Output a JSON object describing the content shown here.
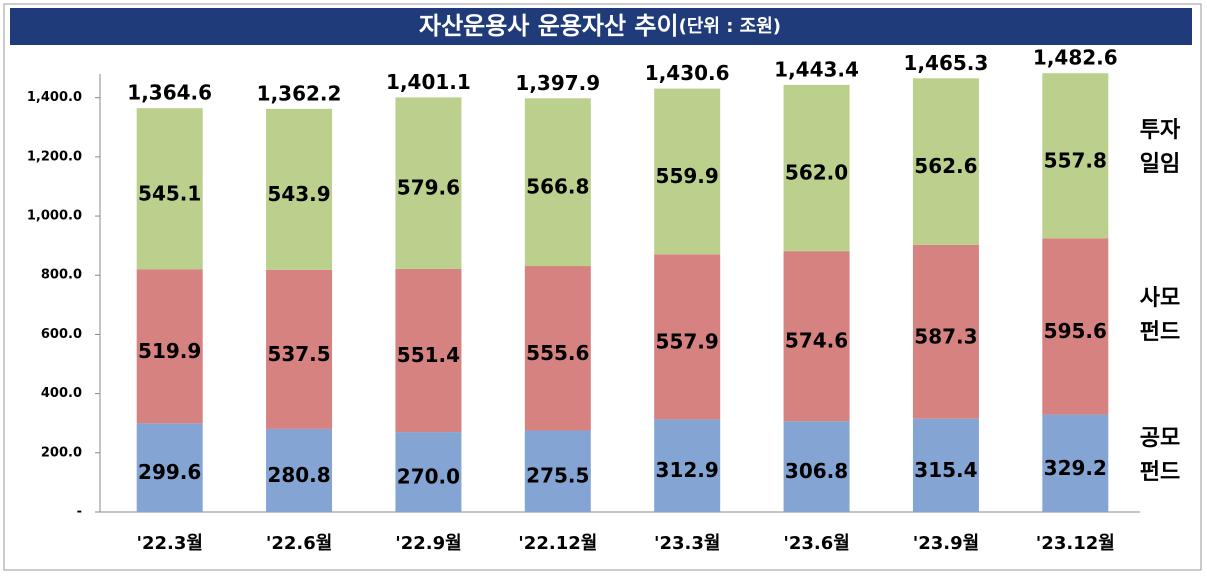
{
  "chart_data": {
    "type": "stacked-bar",
    "title": "자산운용사 운용자산 추이",
    "subtitle": "(단위 : 조원)",
    "categories": [
      "'22.3월",
      "'22.6월",
      "'22.9월",
      "'22.12월",
      "'23.3월",
      "'23.6월",
      "'23.9월",
      "'23.12월"
    ],
    "series": [
      {
        "name": "공모\n펀드",
        "color": "#84a5d3",
        "values": [
          299.6,
          280.8,
          270.0,
          275.5,
          312.9,
          306.8,
          315.4,
          329.2
        ],
        "value_labels": [
          "299.6",
          "280.8",
          "270.0",
          "275.5",
          "312.9",
          "306.8",
          "315.4",
          "329.2"
        ]
      },
      {
        "name": "사모\n펀드",
        "color": "#d68281",
        "values": [
          519.9,
          537.5,
          551.4,
          555.6,
          557.9,
          574.6,
          587.3,
          595.6
        ],
        "value_labels": [
          "519.9",
          "537.5",
          "551.4",
          "555.6",
          "557.9",
          "574.6",
          "587.3",
          "595.6"
        ]
      },
      {
        "name": "투자\n일임",
        "color": "#bcd08d",
        "values": [
          545.1,
          543.9,
          579.6,
          566.8,
          559.9,
          562.0,
          562.6,
          557.8
        ],
        "value_labels": [
          "545.1",
          "543.9",
          "579.6",
          "566.8",
          "559.9",
          "562.0",
          "562.6",
          "557.8"
        ]
      }
    ],
    "totals": [
      1364.6,
      1362.2,
      1401.1,
      1397.9,
      1430.6,
      1443.4,
      1465.3,
      1482.6
    ],
    "total_labels": [
      "1,364.6",
      "1,362.2",
      "1,401.1",
      "1,397.9",
      "1,430.6",
      "1,443.4",
      "1,465.3",
      "1,482.6"
    ],
    "ylim": [
      0,
      1480
    ],
    "yticks": [
      {
        "value": 0,
        "label": "-"
      },
      {
        "value": 200,
        "label": "200.0"
      },
      {
        "value": 400,
        "label": "400.0"
      },
      {
        "value": 600,
        "label": "600.0"
      },
      {
        "value": 800,
        "label": "800.0"
      },
      {
        "value": 1000,
        "label": "1,000.0"
      },
      {
        "value": 1200,
        "label": "1,200.0"
      },
      {
        "value": 1400,
        "label": "1,400.0"
      }
    ],
    "grid": false
  }
}
